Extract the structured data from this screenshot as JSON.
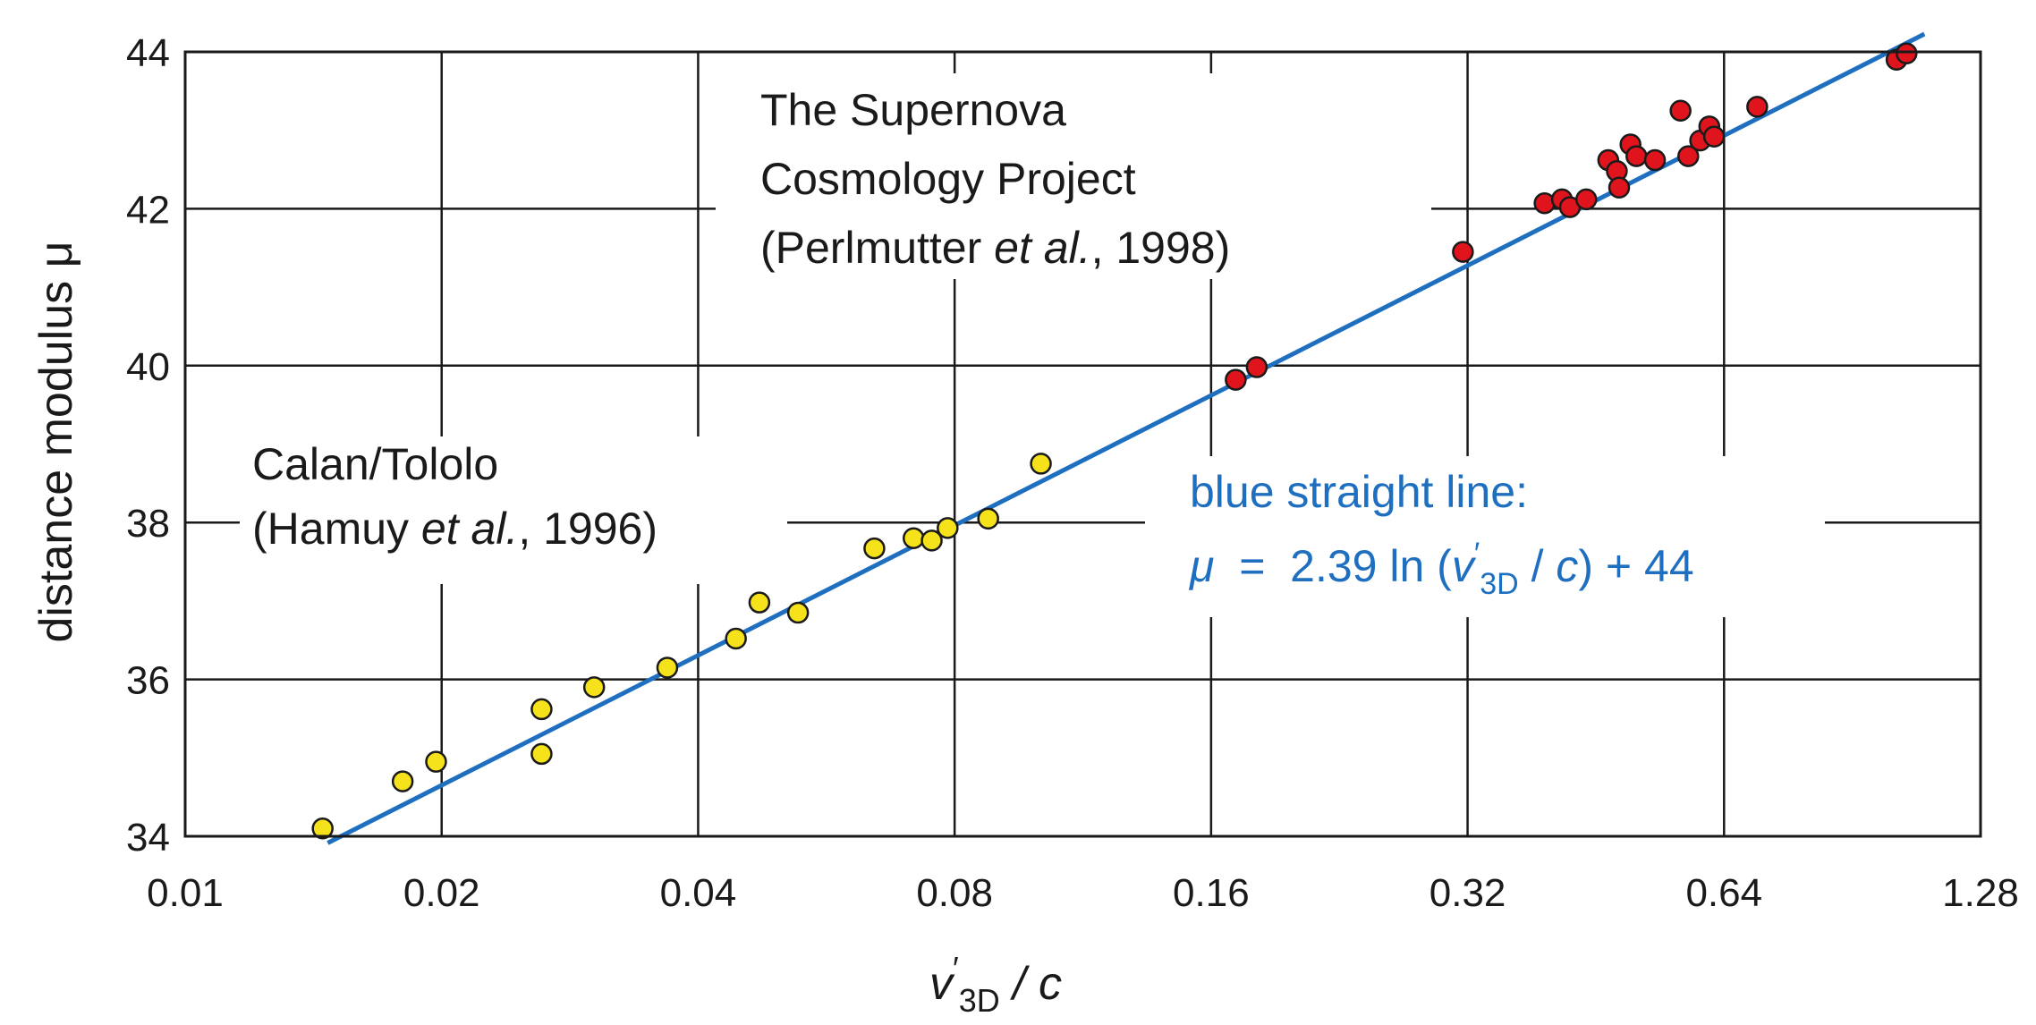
{
  "chart_data": {
    "type": "scatter",
    "title": "",
    "xlabel": {
      "v": "v",
      "prime": "′",
      "sub": "3D",
      "rest": " / c"
    },
    "ylabel": "distance modulus μ",
    "x_scale": "log2",
    "xlim": [
      0.01,
      1.28
    ],
    "ylim": [
      34,
      44
    ],
    "x_ticks": [
      "0.01",
      "0.02",
      "0.04",
      "0.08",
      "0.16",
      "0.32",
      "0.64",
      "1.28"
    ],
    "y_ticks": [
      "34",
      "36",
      "38",
      "40",
      "42",
      "44"
    ],
    "grid": true,
    "series": [
      {
        "color": "#f5e21b",
        "points": [
          [
            0.0145,
            34.1
          ],
          [
            0.018,
            34.7
          ],
          [
            0.0197,
            34.95
          ],
          [
            0.0262,
            35.05
          ],
          [
            0.0262,
            35.62
          ],
          [
            0.0302,
            35.9
          ],
          [
            0.0368,
            36.15
          ],
          [
            0.0443,
            36.52
          ],
          [
            0.0472,
            36.98
          ],
          [
            0.0524,
            36.85
          ],
          [
            0.0644,
            37.67
          ],
          [
            0.0716,
            37.8
          ],
          [
            0.0752,
            37.77
          ],
          [
            0.0785,
            37.93
          ],
          [
            0.0876,
            38.05
          ],
          [
            0.101,
            38.75
          ]
        ]
      },
      {
        "color": "#e0141c",
        "points": [
          [
            0.171,
            39.82
          ],
          [
            0.181,
            39.98
          ],
          [
            0.316,
            41.45
          ],
          [
            0.394,
            42.07
          ],
          [
            0.413,
            42.12
          ],
          [
            0.422,
            42.02
          ],
          [
            0.441,
            42.12
          ],
          [
            0.468,
            42.62
          ],
          [
            0.479,
            42.48
          ],
          [
            0.482,
            42.27
          ],
          [
            0.497,
            42.82
          ],
          [
            0.505,
            42.67
          ],
          [
            0.531,
            42.62
          ],
          [
            0.569,
            43.25
          ],
          [
            0.581,
            42.67
          ],
          [
            0.6,
            42.87
          ],
          [
            0.615,
            43.05
          ],
          [
            0.623,
            42.92
          ],
          [
            0.7,
            43.3
          ],
          [
            1.02,
            43.9
          ],
          [
            1.048,
            43.98
          ]
        ]
      }
    ],
    "fit_line": {
      "color": "#1f6fc0",
      "slope": 2.39,
      "intercept": 44,
      "x_range": [
        0.0147,
        1.1
      ]
    },
    "annotations": {
      "calan": {
        "line1": "Calan/Tololo",
        "line2_a": "(Hamuy ",
        "line2_b": "et al.",
        "line2_c": ", 1996)"
      },
      "scp": {
        "line1": "The Supernova",
        "line2": "Cosmology Project",
        "line3_a": "(Perlmutter ",
        "line3_b": "et al.",
        "line3_c": ", 1998)"
      },
      "fit": {
        "line1": "blue straight line:",
        "mu": "μ",
        "eq_a": "  =  2.39 ln (",
        "v": "v",
        "prime": "′",
        "sub": "3D",
        "eq_b": " / ",
        "c": "c",
        "eq_c": ") + 44"
      }
    }
  }
}
